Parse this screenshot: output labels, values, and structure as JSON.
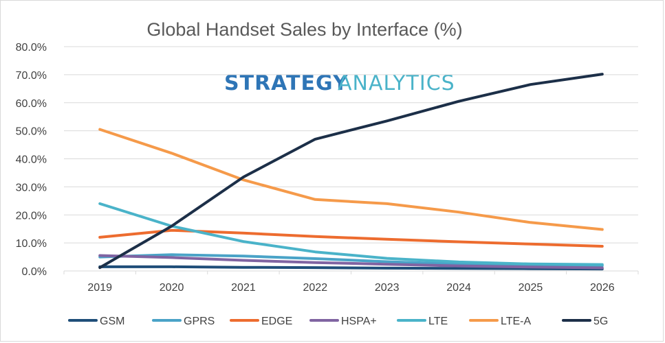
{
  "chart_data": {
    "type": "line",
    "title": "Global Handset Sales by Interface (%)",
    "watermark": {
      "part1": "STRATEGY",
      "part2": "ANALYTICS"
    },
    "xlabel": "",
    "ylabel": "",
    "ylim": [
      0,
      80
    ],
    "y_ticks": [
      "0.0%",
      "10.0%",
      "20.0%",
      "30.0%",
      "40.0%",
      "50.0%",
      "60.0%",
      "70.0%",
      "80.0%"
    ],
    "categories": [
      "2019",
      "2020",
      "2021",
      "2022",
      "2023",
      "2024",
      "2025",
      "2026"
    ],
    "legend_position": "bottom",
    "series": [
      {
        "name": "GSM",
        "color": "#1f4e79",
        "values": [
          1.5,
          1.5,
          1.3,
          1.2,
          1.0,
          0.9,
          0.8,
          0.7
        ]
      },
      {
        "name": "GPRS",
        "color": "#4aa3c7",
        "values": [
          5.0,
          5.8,
          5.3,
          4.4,
          3.3,
          2.5,
          2.0,
          1.9
        ]
      },
      {
        "name": "EDGE",
        "color": "#ed6c2f",
        "values": [
          12.0,
          14.5,
          13.5,
          12.3,
          11.3,
          10.4,
          9.6,
          8.8
        ]
      },
      {
        "name": "HSPA+",
        "color": "#8064a2",
        "values": [
          5.5,
          4.8,
          3.8,
          3.0,
          2.4,
          1.8,
          1.4,
          1.1
        ]
      },
      {
        "name": "LTE",
        "color": "#4ab3c9",
        "values": [
          24.0,
          16.0,
          10.5,
          6.8,
          4.5,
          3.2,
          2.5,
          2.3
        ]
      },
      {
        "name": "LTE-A",
        "color": "#f59a4a",
        "values": [
          50.5,
          42.0,
          32.5,
          25.5,
          24.0,
          21.0,
          17.3,
          14.8
        ]
      },
      {
        "name": "5G",
        "color": "#1c2f48",
        "values": [
          1.2,
          16.0,
          33.5,
          47.0,
          53.5,
          60.5,
          66.5,
          70.2
        ]
      }
    ]
  }
}
